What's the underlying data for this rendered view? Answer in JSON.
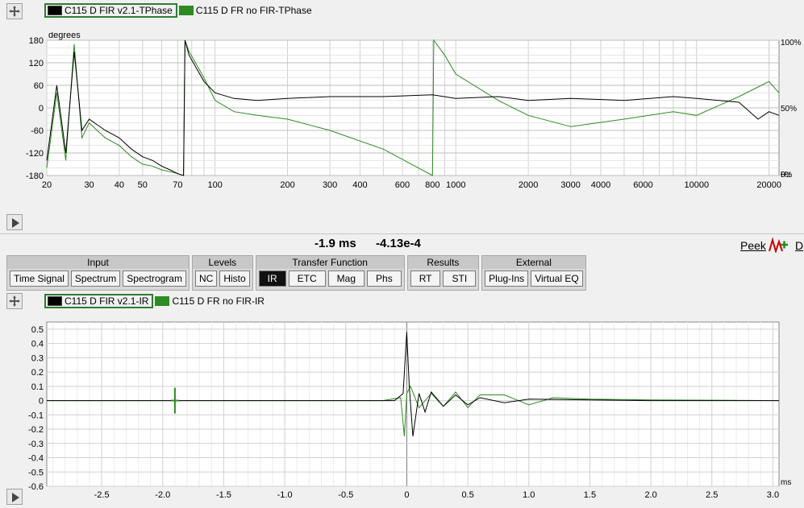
{
  "top_panel": {
    "legend": [
      {
        "label": "C115 D FIR v2.1-TPhase",
        "color": "#000000",
        "selected": true
      },
      {
        "label": "C115 D FR no FIR-TPhase",
        "color": "#2e8b22",
        "selected": false
      }
    ],
    "y_unit": "degrees",
    "x_unit": "Hz",
    "y_ticks": [
      "180",
      "120",
      "60",
      "0",
      "-60",
      "-120",
      "-180"
    ],
    "x_ticks": [
      "20",
      "30",
      "40",
      "50",
      "70",
      "100",
      "200",
      "300",
      "400",
      "600",
      "800",
      "1000",
      "2000",
      "3000",
      "4000",
      "6000",
      "10000",
      "20000"
    ],
    "right_ticks": [
      "100%",
      "50%",
      "0%"
    ]
  },
  "status_bar": {
    "time_readout": "-1.9 ms",
    "value_readout": "-4.13e-4",
    "peek_label": "Peek",
    "cut_label": "D"
  },
  "toolbar": {
    "groups": [
      {
        "title": "Input",
        "buttons": [
          "Time Signal",
          "Spectrum",
          "Spectrogram"
        ]
      },
      {
        "title": "Levels",
        "buttons": [
          "NC",
          "Histo"
        ]
      },
      {
        "title": "Transfer Function",
        "buttons": [
          "IR",
          "ETC",
          "Mag",
          "Phs"
        ]
      },
      {
        "title": "Results",
        "buttons": [
          "RT",
          "STI"
        ]
      },
      {
        "title": "External",
        "buttons": [
          "Plug-Ins",
          "Virtual EQ"
        ]
      }
    ],
    "active_button": "IR"
  },
  "bottom_panel": {
    "legend": [
      {
        "label": "C115 D FIR v2.1-IR",
        "color": "#000000",
        "selected": true
      },
      {
        "label": "C115 D FR no FIR-IR",
        "color": "#2e8b22",
        "selected": false
      }
    ],
    "x_unit": "ms",
    "y_ticks": [
      "0.5",
      "0.4",
      "0.3",
      "0.2",
      "0.1",
      "0",
      "-0.1",
      "-0.2",
      "-0.3",
      "-0.4",
      "-0.5",
      "-0.6"
    ],
    "x_ticks": [
      "-2.5",
      "-2.0",
      "-1.5",
      "-1.0",
      "-0.5",
      "0",
      "0.5",
      "1.0",
      "1.5",
      "2.0",
      "2.5",
      "3.0"
    ],
    "cursor_x_ms": -1.9
  },
  "colors": {
    "series_black": "#000000",
    "series_green": "#2e8b22",
    "grid": "#d0d0d0"
  },
  "chart_data": [
    {
      "type": "line",
      "ylabel": "degrees",
      "xlabel": "Hz",
      "x_scale": "log",
      "xlim": [
        20,
        22000
      ],
      "ylim": [
        -180,
        180
      ],
      "series": [
        {
          "name": "C115 D FIR v2.1-TPhase",
          "x": [
            20,
            22,
            24,
            26,
            28,
            30,
            35,
            40,
            45,
            50,
            55,
            60,
            65,
            70,
            74,
            75,
            78,
            90,
            100,
            120,
            150,
            200,
            300,
            500,
            800,
            1000,
            1500,
            2000,
            3000,
            5000,
            8000,
            10000,
            15000,
            18000,
            20000,
            22000
          ],
          "y": [
            -140,
            60,
            -120,
            150,
            -60,
            -30,
            -60,
            -80,
            -110,
            -130,
            -140,
            -155,
            -165,
            -175,
            -180,
            180,
            140,
            70,
            40,
            25,
            20,
            25,
            30,
            30,
            35,
            25,
            30,
            20,
            25,
            20,
            30,
            25,
            15,
            -30,
            -10,
            -20
          ]
        },
        {
          "name": "C115 D FR no FIR-TPhase",
          "x": [
            20,
            22,
            24,
            26,
            28,
            30,
            35,
            40,
            45,
            50,
            55,
            60,
            65,
            70,
            74,
            75,
            78,
            90,
            100,
            120,
            150,
            200,
            300,
            500,
            700,
            800,
            810,
            900,
            1000,
            1500,
            2000,
            3000,
            5000,
            8000,
            10000,
            15000,
            20000,
            22000
          ],
          "y": [
            -160,
            40,
            -140,
            170,
            -80,
            -40,
            -80,
            -100,
            -130,
            -150,
            -155,
            -165,
            -170,
            -175,
            -180,
            180,
            150,
            80,
            20,
            -10,
            -20,
            -30,
            -60,
            -110,
            -160,
            -180,
            180,
            140,
            90,
            20,
            -20,
            -50,
            -30,
            -10,
            -20,
            30,
            70,
            40
          ]
        }
      ]
    },
    {
      "type": "line",
      "xlabel": "ms",
      "xlim": [
        -2.95,
        3.05
      ],
      "ylim": [
        -0.6,
        0.55
      ],
      "series": [
        {
          "name": "C115 D FIR v2.1-IR",
          "x": [
            -2.95,
            -0.1,
            -0.03,
            0,
            0.02,
            0.05,
            0.1,
            0.15,
            0.2,
            0.3,
            0.4,
            0.5,
            0.6,
            0.8,
            1.0,
            1.5,
            2.0,
            3.05
          ],
          "y": [
            0,
            0,
            0.05,
            0.48,
            0.1,
            -0.25,
            0.05,
            -0.08,
            0.06,
            -0.04,
            0.04,
            -0.03,
            0.02,
            -0.015,
            0.01,
            0.005,
            0,
            0
          ]
        },
        {
          "name": "C115 D FR no FIR-IR",
          "x": [
            -2.95,
            -0.2,
            -0.05,
            -0.02,
            0,
            0.03,
            0.1,
            0.2,
            0.3,
            0.4,
            0.5,
            0.6,
            0.8,
            1.0,
            1.2,
            1.5,
            2.0,
            3.05
          ],
          "y": [
            0,
            0,
            0.02,
            -0.25,
            0.05,
            0.1,
            -0.05,
            0.05,
            -0.04,
            0.06,
            -0.05,
            0.04,
            0.04,
            -0.03,
            0.02,
            0.01,
            0.005,
            0
          ]
        }
      ]
    }
  ]
}
